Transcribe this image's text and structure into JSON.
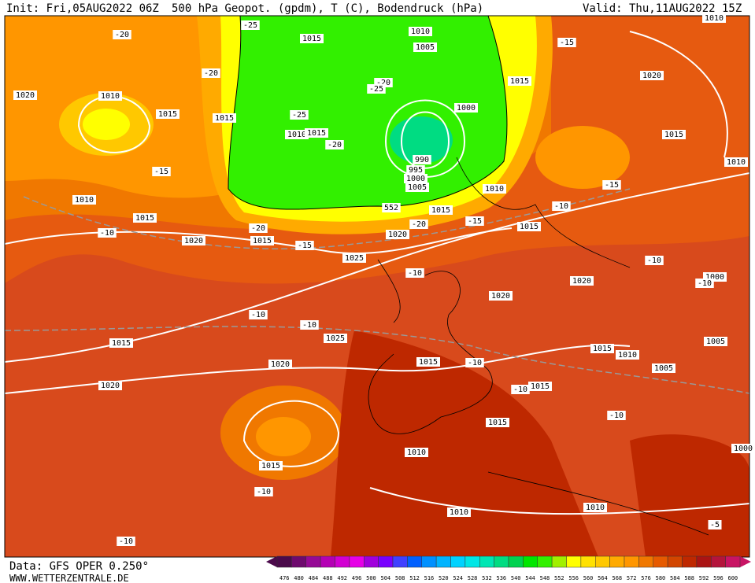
{
  "header": {
    "init": "Init: Fri,05AUG2022 06Z",
    "title": "500 hPa Geopot. (gpdm), T (C), Bodendruck (hPa)",
    "valid": "Valid: Thu,11AUG2022 15Z"
  },
  "footer": {
    "data": "Data: GFS OPER 0.250°",
    "site": "WWW.WETTERZENTRALE.DE"
  },
  "contour_labels": [
    "-20",
    "-20",
    "1020",
    "1010",
    "1015",
    "1015",
    "-25",
    "1015",
    "1010",
    "1005",
    "-15",
    "1015",
    "1020",
    "-20",
    "-25",
    "-25",
    "1010",
    "1015",
    "-20",
    "1000",
    "1015",
    "1010",
    "-15",
    "990",
    "995",
    "1000",
    "1005",
    "1010",
    "-15",
    "1010",
    "1015",
    "552",
    "1015",
    "-10",
    "-20",
    "-15",
    "1015",
    "-10",
    "-20",
    "1020",
    "1020",
    "1015",
    "-15",
    "1025",
    "-10",
    "-10",
    "1020",
    "1000",
    "-10",
    "1020",
    "-10",
    "-10",
    "1025",
    "1015",
    "1015",
    "1010",
    "1005",
    "1020",
    "1015",
    "-10",
    "1005",
    "1020",
    "1015",
    "-10",
    "-10",
    "1015",
    "1010",
    "1015",
    "-10",
    "1010",
    "1010",
    "-10",
    "-5",
    "1010",
    "1000"
  ],
  "colorbar": {
    "ticks": [
      476,
      480,
      484,
      488,
      492,
      496,
      500,
      504,
      508,
      512,
      516,
      520,
      524,
      528,
      532,
      536,
      540,
      544,
      548,
      552,
      556,
      560,
      564,
      568,
      572,
      576,
      580,
      584,
      588,
      592,
      596,
      600
    ],
    "colors": [
      "#4b0a4b",
      "#6e0a6e",
      "#960a96",
      "#b400b4",
      "#d200d2",
      "#e600e6",
      "#a000dc",
      "#7800ff",
      "#4040ff",
      "#0060ff",
      "#0090ff",
      "#00b4ff",
      "#00d2ff",
      "#00e6e6",
      "#00e6b4",
      "#00dc82",
      "#00d250",
      "#00e600",
      "#32f000",
      "#a0f000",
      "#ffff00",
      "#ffe100",
      "#ffc800",
      "#ffaa00",
      "#ff9600",
      "#f07800",
      "#e65a00",
      "#d24600",
      "#be2800",
      "#aa1414",
      "#b4143c",
      "#c81464"
    ]
  }
}
